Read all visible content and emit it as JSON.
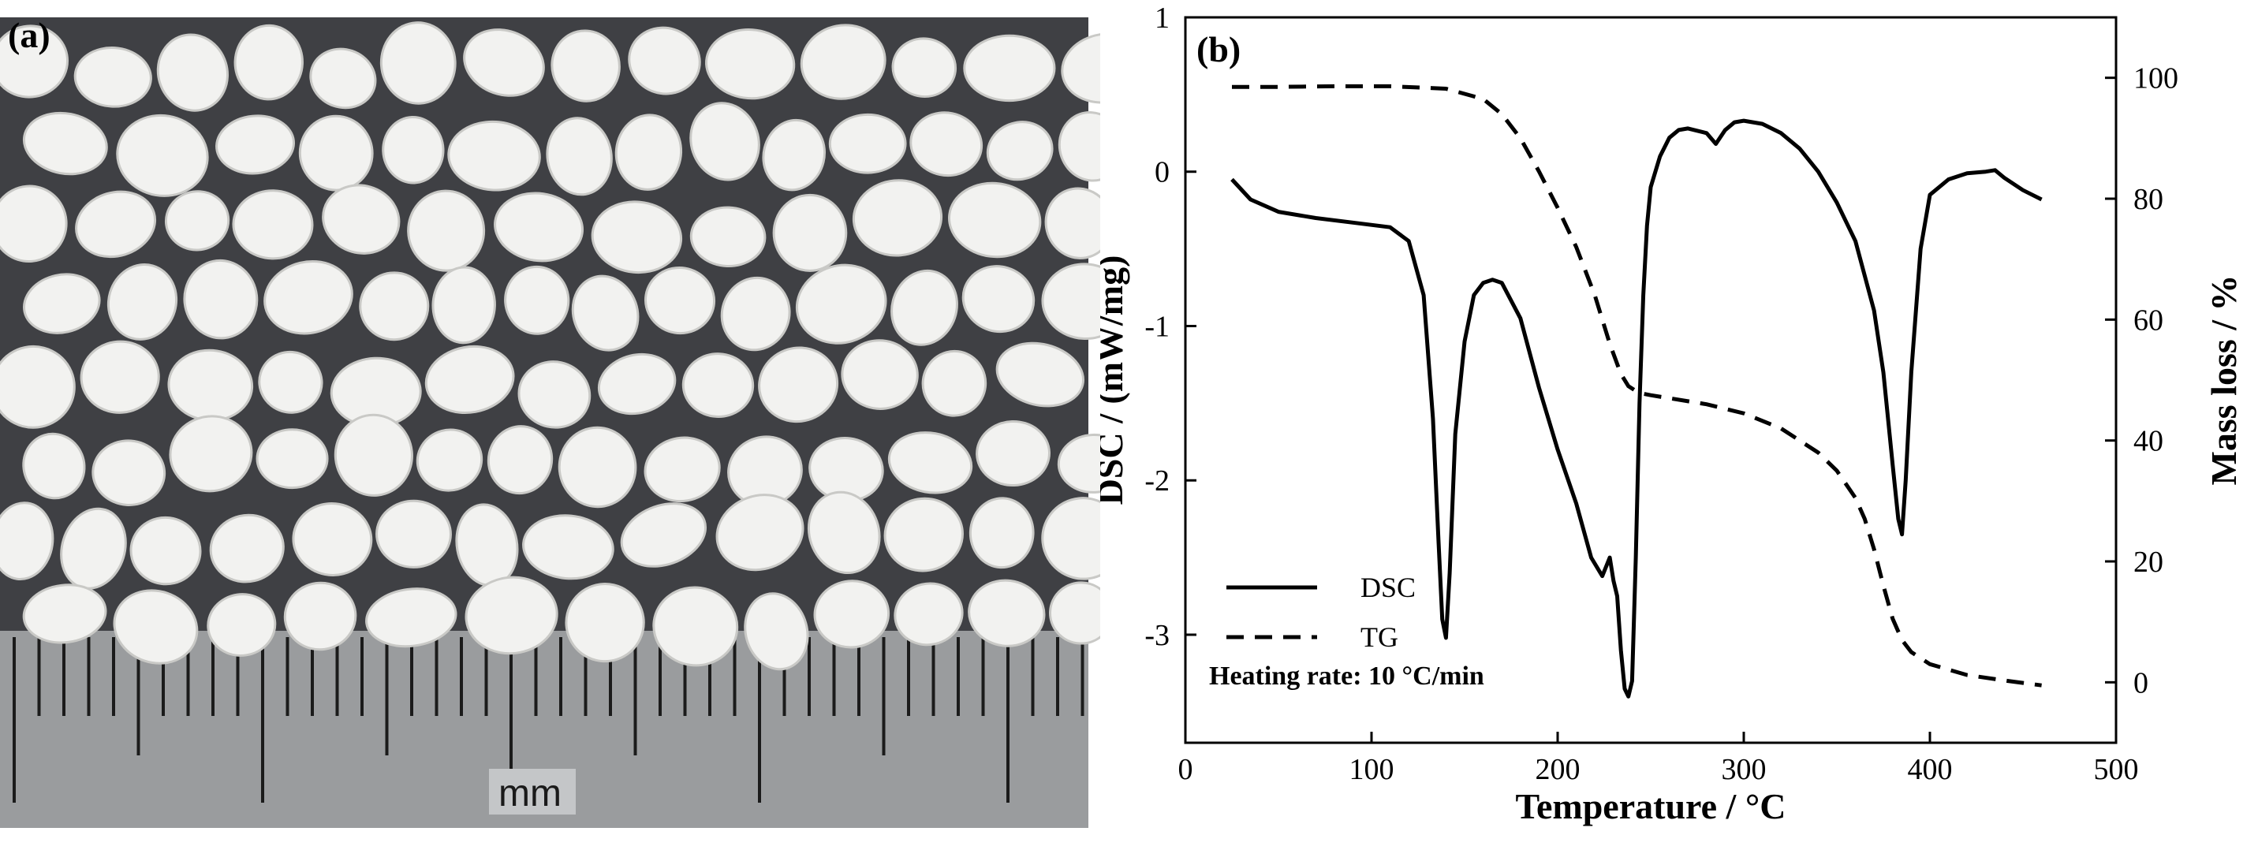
{
  "panels": {
    "a": {
      "label": "(a)",
      "scale_unit": "mm"
    },
    "b": {
      "label": "(b)"
    }
  },
  "colors": {
    "photo_background": "#3f4044",
    "granule": "#f2f2f0",
    "ruler": "#9a9c9e",
    "line": "#000000"
  },
  "chart_data": {
    "type": "line",
    "xlabel": "Temperature / °C",
    "ylabel_left": "DSC / (mW/mg)",
    "ylabel_right": "Mass loss / %",
    "xlim": [
      0,
      500
    ],
    "ylim_left": [
      -3.7,
      1.0
    ],
    "ylim_right": [
      -10,
      110
    ],
    "x_ticks": [
      0,
      100,
      200,
      300,
      400,
      500
    ],
    "y_left_ticks": [
      1,
      0,
      -1,
      -2,
      -3
    ],
    "y_right_ticks": [
      100,
      80,
      60,
      40,
      20,
      0
    ],
    "grid": false,
    "legend_position": "bottom-left",
    "annotation": "Heating rate: 10 °C/min",
    "series": [
      {
        "name": "DSC",
        "axis": "left",
        "style": "solid",
        "x": [
          25,
          35,
          50,
          70,
          90,
          110,
          120,
          128,
          133,
          136,
          138,
          140,
          142,
          145,
          150,
          155,
          160,
          165,
          170,
          180,
          190,
          200,
          210,
          218,
          224,
          228,
          230,
          232,
          234,
          236,
          238,
          240,
          242,
          244,
          246,
          248,
          250,
          255,
          260,
          265,
          270,
          280,
          285,
          290,
          295,
          300,
          310,
          320,
          330,
          340,
          350,
          360,
          370,
          375,
          380,
          383,
          385,
          387,
          390,
          395,
          400,
          410,
          420,
          430,
          435,
          440,
          450,
          460
        ],
        "y": [
          -0.05,
          -0.18,
          -0.26,
          -0.3,
          -0.33,
          -0.36,
          -0.45,
          -0.8,
          -1.6,
          -2.4,
          -2.9,
          -3.02,
          -2.6,
          -1.7,
          -1.1,
          -0.8,
          -0.72,
          -0.7,
          -0.72,
          -0.95,
          -1.4,
          -1.8,
          -2.15,
          -2.5,
          -2.62,
          -2.5,
          -2.65,
          -2.75,
          -3.1,
          -3.35,
          -3.4,
          -3.3,
          -2.5,
          -1.5,
          -0.8,
          -0.35,
          -0.1,
          0.1,
          0.22,
          0.27,
          0.28,
          0.25,
          0.18,
          0.27,
          0.32,
          0.33,
          0.31,
          0.25,
          0.15,
          0.0,
          -0.2,
          -0.45,
          -0.9,
          -1.3,
          -1.9,
          -2.25,
          -2.35,
          -2.0,
          -1.3,
          -0.5,
          -0.15,
          -0.05,
          -0.01,
          0.0,
          0.01,
          -0.04,
          -0.12,
          -0.18
        ]
      },
      {
        "name": "TG",
        "axis": "right",
        "style": "dashed",
        "x": [
          25,
          50,
          80,
          110,
          140,
          160,
          170,
          180,
          190,
          200,
          210,
          220,
          228,
          234,
          238,
          242,
          245,
          250,
          260,
          280,
          300,
          320,
          340,
          350,
          360,
          365,
          370,
          375,
          380,
          385,
          390,
          400,
          420,
          440,
          460
        ],
        "y": [
          98.5,
          98.5,
          98.6,
          98.6,
          98.2,
          96.5,
          94.0,
          90.0,
          84.5,
          78.5,
          72.0,
          64.0,
          56.0,
          51.0,
          49.0,
          48.2,
          47.8,
          47.5,
          47.0,
          46.0,
          44.5,
          42.0,
          38.0,
          35.0,
          30.5,
          27.0,
          22.0,
          16.0,
          10.5,
          7.0,
          5.0,
          3.0,
          1.2,
          0.3,
          -0.5
        ]
      }
    ]
  }
}
